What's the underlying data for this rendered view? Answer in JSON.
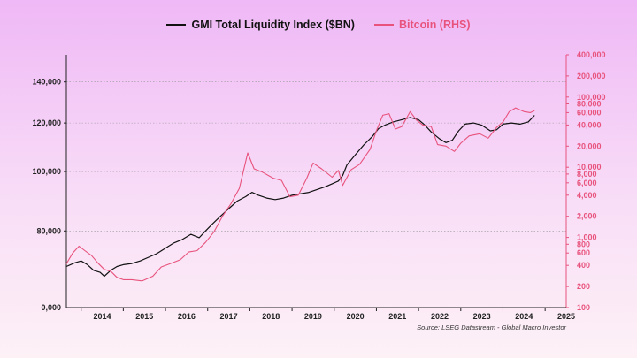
{
  "chart_data": {
    "type": "line",
    "title": "",
    "legend": [
      {
        "label": "GMI Total Liquidity Index ($BN)",
        "color": "#111111"
      },
      {
        "label": "Bitcoin (RHS)",
        "color": "#e8537d"
      }
    ],
    "legend_position": "top-center",
    "source": "Source: LSEG Datastream - Global Macro Investor",
    "left_axis": {
      "scale": "log",
      "ticks": [
        80000,
        100000,
        120000,
        140000
      ],
      "tick_labels": [
        "80,000",
        "100,000",
        "120,000",
        "140,000"
      ],
      "bottom_label": "0,000",
      "range": [
        60000,
        155000
      ]
    },
    "right_axis": {
      "scale": "log",
      "ticks": [
        100,
        200,
        400,
        600,
        800,
        1000,
        2000,
        4000,
        6000,
        8000,
        10000,
        20000,
        40000,
        60000,
        80000,
        100000,
        200000,
        400000
      ],
      "tick_labels": [
        "100",
        "200",
        "400",
        "600",
        "800",
        "1,000",
        "2,000",
        "4,000",
        "6,000",
        "8,000",
        "10,000",
        "20,000",
        "40,000",
        "60,000",
        "80,000",
        "100,000",
        "200,000",
        "400,000"
      ],
      "range": [
        100,
        400000
      ]
    },
    "x_axis": {
      "ticks": [
        "2014",
        "2015",
        "2016",
        "2017",
        "2018",
        "2019",
        "2020",
        "2021",
        "2022",
        "2023",
        "2024",
        "2025"
      ],
      "range": [
        2013.65,
        2025.5
      ]
    },
    "grid": "horizontal-dotted",
    "series": [
      {
        "name": "GMI Total Liquidity Index ($BN)",
        "color": "#111111",
        "axis": "left",
        "points": [
          [
            2013.65,
            70000
          ],
          [
            2013.85,
            71000
          ],
          [
            2014.0,
            71500
          ],
          [
            2014.15,
            70500
          ],
          [
            2014.3,
            69000
          ],
          [
            2014.45,
            68500
          ],
          [
            2014.55,
            67500
          ],
          [
            2014.7,
            69000
          ],
          [
            2014.85,
            70000
          ],
          [
            2015.0,
            70500
          ],
          [
            2015.2,
            70800
          ],
          [
            2015.4,
            71500
          ],
          [
            2015.6,
            72500
          ],
          [
            2015.8,
            73500
          ],
          [
            2016.0,
            75000
          ],
          [
            2016.2,
            76500
          ],
          [
            2016.4,
            77500
          ],
          [
            2016.6,
            79000
          ],
          [
            2016.8,
            78000
          ],
          [
            2016.95,
            80000
          ],
          [
            2017.1,
            82000
          ],
          [
            2017.3,
            84500
          ],
          [
            2017.5,
            87000
          ],
          [
            2017.7,
            89500
          ],
          [
            2017.9,
            91000
          ],
          [
            2018.05,
            92500
          ],
          [
            2018.2,
            91500
          ],
          [
            2018.4,
            90500
          ],
          [
            2018.6,
            90000
          ],
          [
            2018.8,
            90500
          ],
          [
            2019.0,
            91500
          ],
          [
            2019.2,
            92000
          ],
          [
            2019.4,
            92500
          ],
          [
            2019.6,
            93500
          ],
          [
            2019.8,
            94500
          ],
          [
            2019.95,
            95500
          ],
          [
            2020.1,
            96500
          ],
          [
            2020.2,
            98500
          ],
          [
            2020.3,
            102500
          ],
          [
            2020.5,
            106500
          ],
          [
            2020.7,
            110500
          ],
          [
            2020.9,
            114000
          ],
          [
            2021.05,
            117500
          ],
          [
            2021.2,
            119000
          ],
          [
            2021.4,
            120500
          ],
          [
            2021.6,
            121500
          ],
          [
            2021.8,
            122500
          ],
          [
            2022.0,
            121500
          ],
          [
            2022.15,
            119000
          ],
          [
            2022.3,
            116000
          ],
          [
            2022.5,
            113000
          ],
          [
            2022.65,
            111500
          ],
          [
            2022.8,
            112500
          ],
          [
            2022.95,
            116500
          ],
          [
            2023.1,
            119500
          ],
          [
            2023.3,
            120000
          ],
          [
            2023.5,
            119000
          ],
          [
            2023.7,
            116500
          ],
          [
            2023.85,
            117000
          ],
          [
            2024.0,
            119500
          ],
          [
            2024.2,
            120000
          ],
          [
            2024.4,
            119500
          ],
          [
            2024.6,
            120500
          ],
          [
            2024.75,
            123500
          ]
        ]
      },
      {
        "name": "Bitcoin (RHS)",
        "color": "#e8537d",
        "axis": "right",
        "points": [
          [
            2013.65,
            420
          ],
          [
            2013.8,
            600
          ],
          [
            2013.95,
            750
          ],
          [
            2014.1,
            640
          ],
          [
            2014.25,
            550
          ],
          [
            2014.4,
            430
          ],
          [
            2014.55,
            350
          ],
          [
            2014.7,
            330
          ],
          [
            2014.85,
            270
          ],
          [
            2015.0,
            250
          ],
          [
            2015.2,
            250
          ],
          [
            2015.45,
            240
          ],
          [
            2015.7,
            280
          ],
          [
            2015.9,
            380
          ],
          [
            2016.1,
            420
          ],
          [
            2016.35,
            480
          ],
          [
            2016.55,
            620
          ],
          [
            2016.75,
            650
          ],
          [
            2016.95,
            850
          ],
          [
            2017.15,
            1200
          ],
          [
            2017.35,
            2000
          ],
          [
            2017.55,
            3000
          ],
          [
            2017.75,
            5000
          ],
          [
            2017.95,
            16000
          ],
          [
            2018.1,
            9500
          ],
          [
            2018.3,
            8500
          ],
          [
            2018.55,
            7000
          ],
          [
            2018.75,
            6500
          ],
          [
            2018.95,
            3800
          ],
          [
            2019.15,
            4000
          ],
          [
            2019.35,
            7000
          ],
          [
            2019.5,
            11500
          ],
          [
            2019.7,
            9500
          ],
          [
            2019.95,
            7200
          ],
          [
            2020.1,
            9000
          ],
          [
            2020.2,
            5500
          ],
          [
            2020.4,
            9200
          ],
          [
            2020.6,
            11000
          ],
          [
            2020.85,
            18000
          ],
          [
            2021.0,
            33000
          ],
          [
            2021.15,
            55000
          ],
          [
            2021.3,
            58000
          ],
          [
            2021.45,
            35000
          ],
          [
            2021.6,
            38000
          ],
          [
            2021.8,
            62000
          ],
          [
            2021.95,
            47000
          ],
          [
            2022.1,
            40000
          ],
          [
            2022.3,
            38000
          ],
          [
            2022.45,
            21000
          ],
          [
            2022.65,
            20000
          ],
          [
            2022.85,
            16800
          ],
          [
            2023.0,
            22000
          ],
          [
            2023.2,
            28000
          ],
          [
            2023.45,
            30000
          ],
          [
            2023.65,
            26000
          ],
          [
            2023.85,
            37000
          ],
          [
            2024.0,
            44000
          ],
          [
            2024.15,
            62000
          ],
          [
            2024.3,
            70000
          ],
          [
            2024.5,
            62000
          ],
          [
            2024.65,
            60000
          ],
          [
            2024.75,
            64000
          ]
        ]
      }
    ]
  }
}
